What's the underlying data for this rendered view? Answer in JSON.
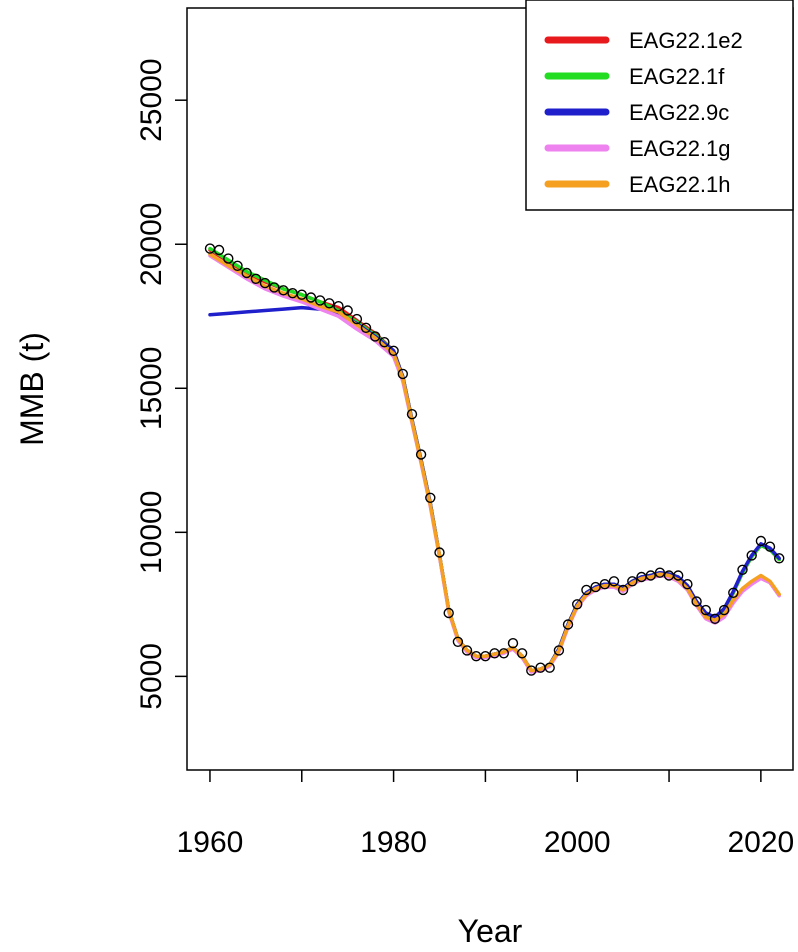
{
  "chart_data": {
    "type": "line",
    "title": "",
    "xlabel": "Year",
    "ylabel": "MMB (t)",
    "xlim": [
      1957.5,
      2023.5
    ],
    "ylim": [
      1750,
      28200
    ],
    "x_ticks": [
      1960,
      1980,
      2000,
      2020
    ],
    "x_minor_ticks": [
      1970,
      1990,
      2010
    ],
    "y_ticks": [
      5000,
      10000,
      15000,
      20000,
      25000
    ],
    "grid": false,
    "legend_position": "top-right",
    "observed": {
      "marker": "open-circle",
      "color": "#000000",
      "x": [
        1960,
        1961,
        1962,
        1963,
        1964,
        1965,
        1966,
        1967,
        1968,
        1969,
        1970,
        1971,
        1972,
        1973,
        1974,
        1975,
        1976,
        1977,
        1978,
        1979,
        1980,
        1981,
        1982,
        1983,
        1984,
        1985,
        1986,
        1987,
        1988,
        1989,
        1990,
        1991,
        1992,
        1993,
        1994,
        1995,
        1996,
        1997,
        1998,
        1999,
        2000,
        2001,
        2002,
        2003,
        2004,
        2005,
        2006,
        2007,
        2008,
        2009,
        2010,
        2011,
        2012,
        2013,
        2014,
        2015,
        2016,
        2017,
        2018,
        2019,
        2020,
        2021,
        2022
      ],
      "y": [
        19850,
        19800,
        19500,
        19250,
        19000,
        18800,
        18650,
        18500,
        18400,
        18300,
        18250,
        18150,
        18050,
        17950,
        17850,
        17700,
        17400,
        17100,
        16800,
        16600,
        16300,
        15500,
        14100,
        12700,
        11200,
        9300,
        7200,
        6200,
        5900,
        5700,
        5700,
        5800,
        5800,
        6150,
        5800,
        5200,
        5300,
        5300,
        5900,
        6800,
        7500,
        8000,
        8100,
        8200,
        8300,
        8000,
        8300,
        8450,
        8500,
        8600,
        8500,
        8500,
        8200,
        7600,
        7300,
        7000,
        7300,
        7900,
        8700,
        9200,
        9700,
        9500,
        9100
      ]
    },
    "series": [
      {
        "name": "EAG22.1e2",
        "color": "#e8191c",
        "x": [
          1960,
          1962,
          1964,
          1966,
          1968,
          1970,
          1972,
          1974,
          1976,
          1978,
          1980,
          1981,
          1982,
          1983,
          1984,
          1985,
          1986,
          1987,
          1988,
          1989,
          1990,
          1992,
          1993,
          1994,
          1995,
          1996,
          1997,
          1998,
          1999,
          2000,
          2001,
          2002,
          2003,
          2004,
          2005,
          2006,
          2007,
          2008,
          2009,
          2010,
          2011,
          2012,
          2013,
          2014,
          2015,
          2016,
          2017,
          2018,
          2019,
          2020,
          2021,
          2022
        ],
        "y": [
          19800,
          19400,
          19000,
          18700,
          18450,
          18250,
          18000,
          17800,
          17350,
          16900,
          16300,
          15400,
          13900,
          12500,
          11000,
          9200,
          7300,
          6300,
          5900,
          5700,
          5700,
          5850,
          6000,
          5700,
          5200,
          5250,
          5400,
          5950,
          6800,
          7500,
          7900,
          8100,
          8200,
          8200,
          8050,
          8300,
          8450,
          8500,
          8600,
          8550,
          8450,
          8150,
          7550,
          7150,
          7000,
          7300,
          7900,
          8600,
          9150,
          9550,
          9400,
          9050
        ]
      },
      {
        "name": "EAG22.1f",
        "color": "#22dd22",
        "x": [
          1960,
          1962,
          1964,
          1966,
          1968,
          1970,
          1972,
          1974,
          1976,
          1978,
          1980,
          1981,
          1982,
          1983,
          1984,
          1985,
          1986,
          1987,
          1988,
          1989,
          1990,
          1992,
          1993,
          1994,
          1995,
          1996,
          1997,
          1998,
          1999,
          2000,
          2001,
          2002,
          2003,
          2004,
          2005,
          2006,
          2007,
          2008,
          2009,
          2010,
          2011,
          2012,
          2013,
          2014,
          2015,
          2016,
          2017,
          2018,
          2019,
          2020,
          2021,
          2022
        ],
        "y": [
          19850,
          19450,
          19050,
          18750,
          18450,
          18250,
          18000,
          17700,
          17300,
          16850,
          16300,
          15400,
          13900,
          12500,
          11000,
          9200,
          7300,
          6300,
          5900,
          5700,
          5700,
          5850,
          6000,
          5700,
          5200,
          5250,
          5400,
          5950,
          6800,
          7500,
          7900,
          8100,
          8200,
          8200,
          8050,
          8300,
          8450,
          8500,
          8600,
          8550,
          8450,
          8150,
          7550,
          7150,
          7000,
          7300,
          7900,
          8600,
          9150,
          9550,
          9400,
          9050
        ]
      },
      {
        "name": "EAG22.9c",
        "color": "#1f1fcc",
        "x": [
          1960,
          1962,
          1964,
          1966,
          1968,
          1970,
          1972,
          1974,
          1976,
          1978,
          1980,
          1981,
          1982,
          1983,
          1984,
          1985,
          1986,
          1987,
          1988,
          1989,
          1990,
          1992,
          1993,
          1994,
          1995,
          1996,
          1997,
          1998,
          1999,
          2000,
          2001,
          2002,
          2003,
          2004,
          2005,
          2006,
          2007,
          2008,
          2009,
          2010,
          2011,
          2012,
          2013,
          2014,
          2015,
          2016,
          2017,
          2018,
          2019,
          2020,
          2021,
          2022
        ],
        "y": [
          17550,
          17600,
          17650,
          17700,
          17750,
          17800,
          17750,
          17600,
          17250,
          16800,
          16300,
          15400,
          13900,
          12500,
          11000,
          9200,
          7300,
          6300,
          5900,
          5700,
          5700,
          5850,
          6000,
          5700,
          5200,
          5250,
          5400,
          5950,
          6800,
          7500,
          7900,
          8100,
          8200,
          8200,
          8050,
          8300,
          8450,
          8500,
          8600,
          8550,
          8450,
          8150,
          7600,
          7200,
          7050,
          7350,
          7950,
          8650,
          9200,
          9600,
          9450,
          9100
        ]
      },
      {
        "name": "EAG22.1g",
        "color": "#ee82ee",
        "x": [
          1960,
          1962,
          1964,
          1966,
          1968,
          1970,
          1972,
          1974,
          1976,
          1978,
          1980,
          1981,
          1982,
          1983,
          1984,
          1985,
          1986,
          1987,
          1988,
          1989,
          1990,
          1992,
          1993,
          1994,
          1995,
          1996,
          1997,
          1998,
          1999,
          2000,
          2001,
          2002,
          2003,
          2004,
          2005,
          2006,
          2007,
          2008,
          2009,
          2010,
          2011,
          2012,
          2013,
          2014,
          2015,
          2016,
          2017,
          2018,
          2019,
          2020,
          2021,
          2022
        ],
        "y": [
          19600,
          19200,
          18800,
          18450,
          18200,
          18000,
          17750,
          17500,
          17050,
          16650,
          16100,
          15250,
          13800,
          12400,
          10900,
          9150,
          7250,
          6250,
          5850,
          5650,
          5650,
          5800,
          5950,
          5650,
          5150,
          5200,
          5350,
          5850,
          6700,
          7400,
          7800,
          8000,
          8100,
          8100,
          7950,
          8200,
          8350,
          8400,
          8500,
          8450,
          8300,
          8000,
          7450,
          7000,
          6850,
          7050,
          7550,
          7950,
          8200,
          8400,
          8250,
          7800
        ]
      },
      {
        "name": "EAG22.1h",
        "color": "#f5a020",
        "x": [
          1960,
          1962,
          1964,
          1966,
          1968,
          1970,
          1972,
          1974,
          1976,
          1978,
          1980,
          1981,
          1982,
          1983,
          1984,
          1985,
          1986,
          1987,
          1988,
          1989,
          1990,
          1992,
          1993,
          1994,
          1995,
          1996,
          1997,
          1998,
          1999,
          2000,
          2001,
          2002,
          2003,
          2004,
          2005,
          2006,
          2007,
          2008,
          2009,
          2010,
          2011,
          2012,
          2013,
          2014,
          2015,
          2016,
          2017,
          2018,
          2019,
          2020,
          2021,
          2022
        ],
        "y": [
          19650,
          19250,
          18900,
          18550,
          18300,
          18100,
          17850,
          17650,
          17200,
          16750,
          16200,
          15350,
          13850,
          12450,
          10950,
          9200,
          7300,
          6300,
          5900,
          5700,
          5700,
          5850,
          6000,
          5700,
          5200,
          5250,
          5400,
          5900,
          6750,
          7450,
          7850,
          8050,
          8150,
          8150,
          8000,
          8250,
          8400,
          8450,
          8550,
          8500,
          8350,
          8050,
          7500,
          7050,
          6950,
          7150,
          7650,
          8050,
          8300,
          8500,
          8300,
          7850
        ]
      }
    ]
  }
}
